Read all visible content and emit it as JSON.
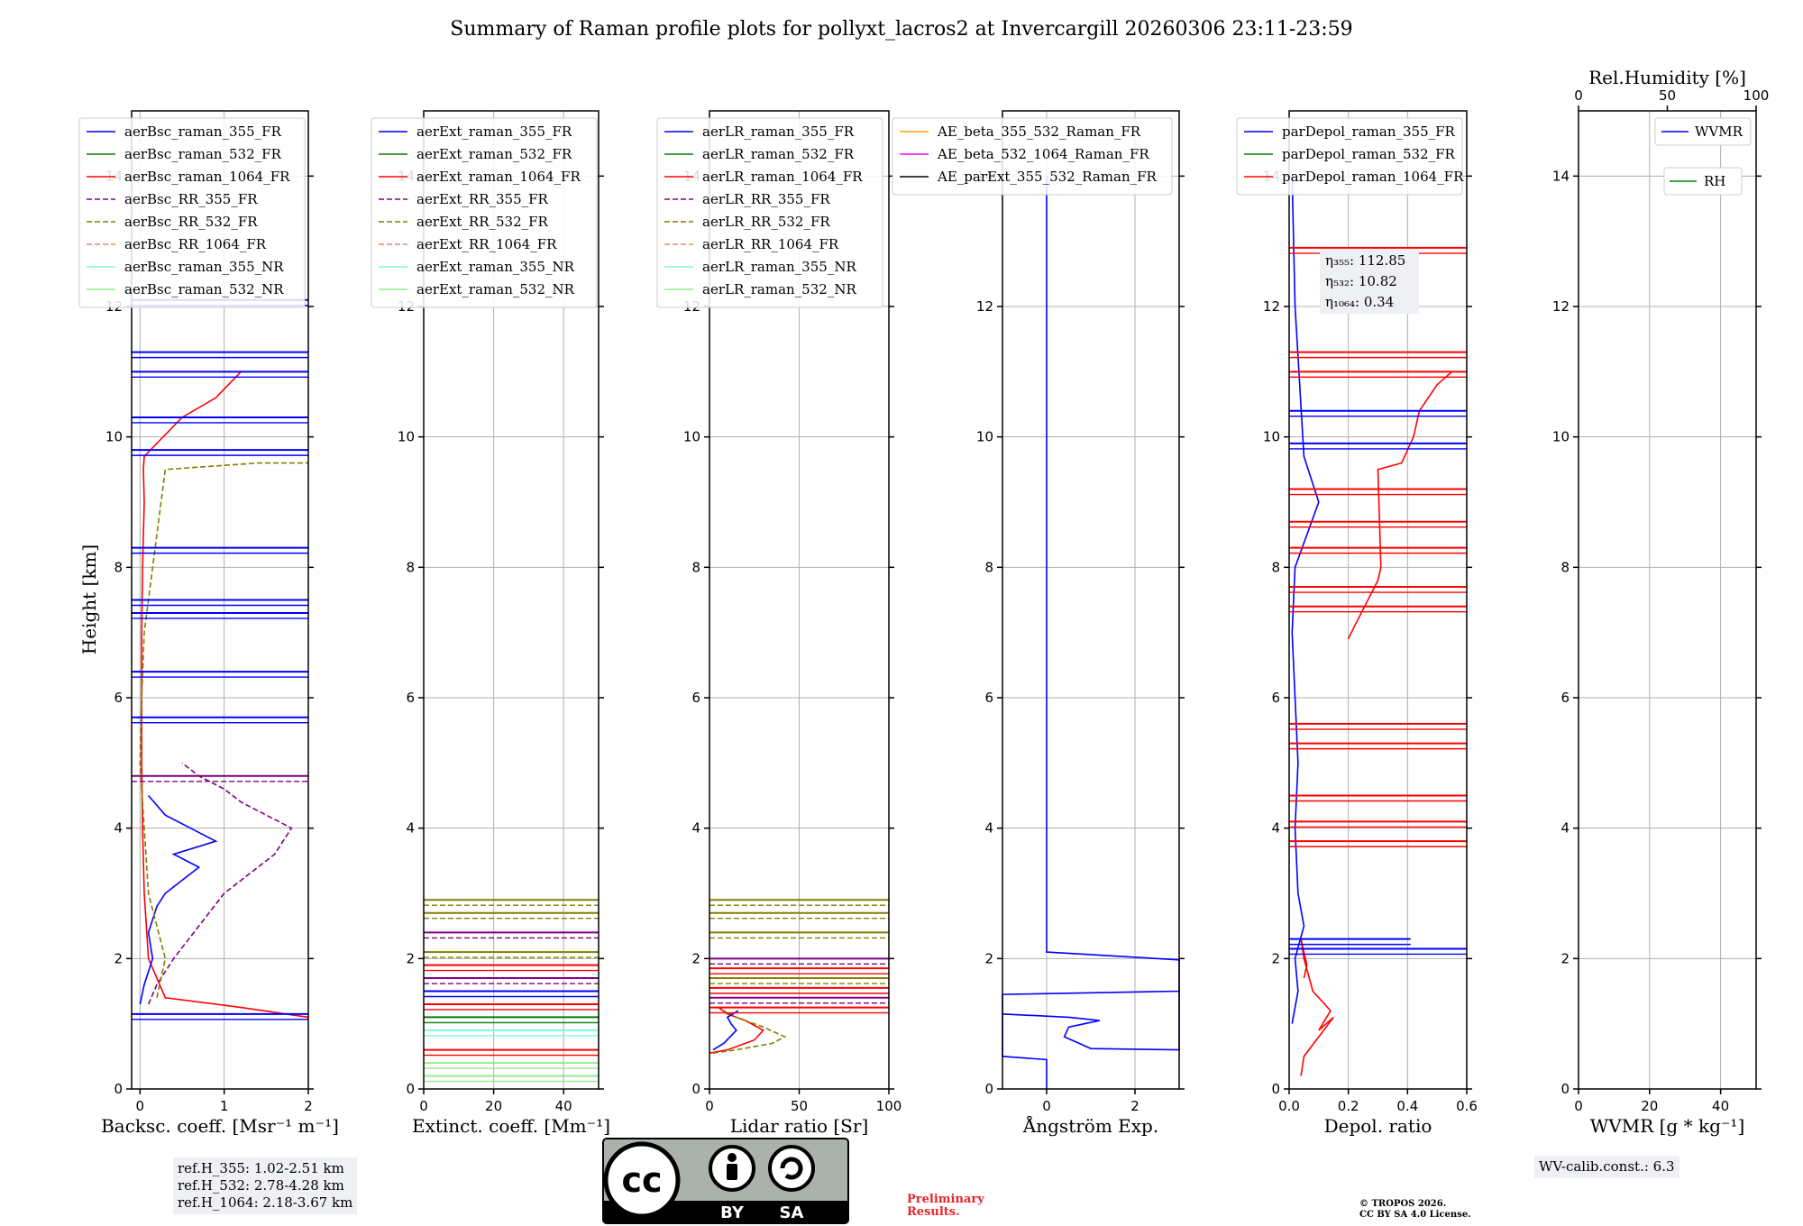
{
  "title": "Summary of Raman profile plots for pollyxt_lacros2 at Invercargill 20260306 23:11-23:59",
  "ylabel": "Height [km]",
  "yticks": [
    "0",
    "2",
    "4",
    "6",
    "8",
    "10",
    "12",
    "14"
  ],
  "chart_data": [
    {
      "type": "line",
      "id": "bsc",
      "xlabel": "Backsc. coeff. [Msr⁻¹ m⁻¹]",
      "xlim": [
        -0.1,
        2
      ],
      "ylim": [
        0,
        15
      ],
      "xticks": [
        "0",
        "1",
        "2"
      ],
      "legend": [
        "aerBsc_raman_355_FR",
        "aerBsc_raman_532_FR",
        "aerBsc_raman_1064_FR",
        "aerBsc_RR_355_FR",
        "aerBsc_RR_532_FR",
        "aerBsc_RR_1064_FR",
        "aerBsc_raman_355_NR",
        "aerBsc_raman_532_NR"
      ],
      "series": [
        {
          "name": "aerBsc_raman_1064_FR",
          "x": [
            2.0,
            1.2,
            0.3,
            0.1,
            0.05,
            0.03,
            0.02,
            0.02,
            0.02,
            0.03,
            0.05,
            0.04,
            0.05,
            0.5,
            0.9,
            1.2
          ],
          "y": [
            1.1,
            1.25,
            1.4,
            2.0,
            3.0,
            4.0,
            5.0,
            6.0,
            7.0,
            8.0,
            9.0,
            9.5,
            9.7,
            10.3,
            10.6,
            11.0
          ]
        },
        {
          "name": "aerBsc_raman_355_FR",
          "x": [
            0.0,
            0.05,
            0.15,
            0.1,
            0.2,
            0.3,
            0.5,
            0.7,
            0.4,
            0.9,
            0.6,
            0.3,
            0.1
          ],
          "y": [
            1.3,
            1.6,
            2.0,
            2.4,
            2.8,
            3.0,
            3.2,
            3.4,
            3.6,
            3.8,
            4.0,
            4.2,
            4.5
          ]
        },
        {
          "name": "aerBsc_RR_355_FR",
          "x": [
            0.1,
            0.2,
            0.4,
            0.7,
            1.0,
            1.3,
            1.6,
            1.8,
            1.5,
            1.2,
            1.0,
            0.7,
            0.5
          ],
          "y": [
            1.3,
            1.6,
            2.0,
            2.5,
            3.0,
            3.3,
            3.6,
            4.0,
            4.2,
            4.4,
            4.6,
            4.8,
            5.0
          ]
        },
        {
          "name": "aerBsc_RR_532_FR",
          "x": [
            0.2,
            0.3,
            0.2,
            0.1,
            0.05,
            0.0,
            0.02,
            0.05,
            0.3,
            1.4,
            2.0
          ],
          "y": [
            1.4,
            2.0,
            2.5,
            3.0,
            4.0,
            5.0,
            6.0,
            7.0,
            9.5,
            9.6,
            9.6
          ]
        }
      ]
    },
    {
      "type": "line",
      "id": "ext",
      "xlabel": "Extinct. coeff. [Mm⁻¹]",
      "xlim": [
        0,
        50
      ],
      "ylim": [
        0,
        15
      ],
      "xticks": [
        "0",
        "20",
        "40"
      ],
      "legend": [
        "aerExt_raman_355_FR",
        "aerExt_raman_532_FR",
        "aerExt_raman_1064_FR",
        "aerExt_RR_355_FR",
        "aerExt_RR_532_FR",
        "aerExt_RR_1064_FR",
        "aerExt_raman_355_NR",
        "aerExt_raman_532_NR"
      ],
      "series": []
    },
    {
      "type": "line",
      "id": "lr",
      "xlabel": "Lidar ratio [Sr]",
      "xlim": [
        0,
        100
      ],
      "ylim": [
        0,
        15
      ],
      "xticks": [
        "0",
        "50",
        "100"
      ],
      "legend": [
        "aerLR_raman_355_FR",
        "aerLR_raman_532_FR",
        "aerLR_raman_1064_FR",
        "aerLR_RR_355_FR",
        "aerLR_RR_532_FR",
        "aerLR_RR_1064_FR",
        "aerLR_raman_355_NR",
        "aerLR_raman_532_NR"
      ],
      "series": [
        {
          "name": "aerLR_raman_1064_FR",
          "x": [
            0,
            10,
            25,
            30,
            20,
            10,
            5
          ],
          "y": [
            0.55,
            0.6,
            0.75,
            0.9,
            1.05,
            1.15,
            1.25
          ]
        },
        {
          "name": "aerLR_RR_532_FR",
          "x": [
            2,
            15,
            35,
            42,
            30,
            15,
            8
          ],
          "y": [
            0.55,
            0.6,
            0.7,
            0.8,
            0.95,
            1.1,
            1.2
          ]
        },
        {
          "name": "aerLR_raman_355_FR",
          "x": [
            2,
            8,
            15,
            12,
            10,
            16
          ],
          "y": [
            0.6,
            0.7,
            0.9,
            1.0,
            1.1,
            1.2
          ]
        }
      ]
    },
    {
      "type": "line",
      "id": "ae",
      "xlabel": "Ångström Exp.",
      "xlim": [
        -1,
        3
      ],
      "ylim": [
        0,
        15
      ],
      "xticks": [
        "0",
        "2"
      ],
      "legend": [
        "AE_beta_355_532_Raman_FR",
        "AE_beta_532_1064_Raman_FR",
        "AE_parExt_355_532_Raman_FR"
      ],
      "series": [
        {
          "name": "AE_parExt_355_532_Raman_FR",
          "x": [
            0,
            0,
            -1,
            -1,
            3,
            -1,
            -1,
            0.5,
            1.2,
            0.5,
            0.4,
            1.0,
            3,
            3,
            0,
            0,
            0,
            0
          ],
          "y": [
            0,
            0.45,
            0.5,
            1.45,
            1.5,
            1.45,
            1.15,
            1.1,
            1.05,
            0.95,
            0.8,
            0.62,
            0.6,
            1.98,
            2.1,
            2.1,
            8,
            14
          ]
        }
      ]
    },
    {
      "type": "line",
      "id": "depol",
      "xlabel": "Depol. ratio",
      "xlim": [
        0,
        0.6
      ],
      "ylim": [
        0,
        15
      ],
      "xticks": [
        "0.0",
        "0.2",
        "0.4",
        "0.6"
      ],
      "legend": [
        "parDepol_raman_355_FR",
        "parDepol_raman_532_FR",
        "parDepol_raman_1064_FR"
      ],
      "annotations": [
        "η₃₅₅: 112.85",
        "η₅₃₂: 10.82",
        "η₁₀₆₄: 0.34"
      ],
      "series": [
        {
          "name": "parDepol_raman_1064_FR",
          "x": [
            0.04,
            0.05,
            0.1,
            0.15,
            0.1,
            0.14,
            0.08,
            0.05,
            0.04,
            0.06,
            0.05
          ],
          "y": [
            0.2,
            0.5,
            0.8,
            1.1,
            0.9,
            1.2,
            1.5,
            2.0,
            2.3,
            1.9,
            1.7
          ]
        },
        {
          "name": "parDepol_raman_1064_FR_upper",
          "x": [
            0.2,
            0.21,
            0.3,
            0.31,
            0.3,
            0.38,
            0.42,
            0.44,
            0.5,
            0.55
          ],
          "y": [
            6.9,
            7.0,
            7.8,
            8.0,
            9.5,
            9.6,
            10.0,
            10.4,
            10.8,
            11.0
          ]
        },
        {
          "name": "parDepol_raman_355_FR",
          "x": [
            0.01,
            0.03,
            0.02,
            0.05,
            0.03,
            0.02,
            0.03,
            0.02,
            0.01,
            0.02,
            0.1,
            0.05,
            0.02,
            0.01
          ],
          "y": [
            1.0,
            1.5,
            2.0,
            2.5,
            3.0,
            4.0,
            5.0,
            6.0,
            7.0,
            8.0,
            9.0,
            9.7,
            12.0,
            14.0
          ]
        }
      ]
    },
    {
      "type": "line",
      "id": "wv",
      "xlabel": "WVMR [g * kg⁻¹]",
      "xlim": [
        0,
        50
      ],
      "ylim": [
        0,
        15
      ],
      "xticks": [
        "0",
        "20",
        "40"
      ],
      "top_label": "Rel.Humidity [%]",
      "top_ticks": [
        "0",
        "50",
        "100"
      ],
      "legend": [
        "WVMR",
        "RH"
      ],
      "series": []
    }
  ],
  "ref_box": [
    "ref.H_355: 1.02-2.51 km",
    "ref.H_532: 2.78-4.28 km",
    "ref.H_1064: 2.18-3.67 km"
  ],
  "wv_calib": "WV-calib.const.: 6.3",
  "preliminary": [
    "Preliminary",
    "Results."
  ],
  "copyright": [
    "© TROPOS 2026.",
    "CC BY SA 4.0 License."
  ],
  "license_badge": [
    "BY",
    "SA"
  ],
  "colors": {
    "blue": "#0000ff",
    "green": "#008000",
    "red": "#ff0000",
    "purple": "#800080",
    "olive": "#808000",
    "salmon": "#fa8072",
    "cyan": "#7fffd4",
    "lightgreen": "#90ee90",
    "orange": "#ffa500",
    "magenta": "#ff00ff",
    "black": "#000000"
  }
}
